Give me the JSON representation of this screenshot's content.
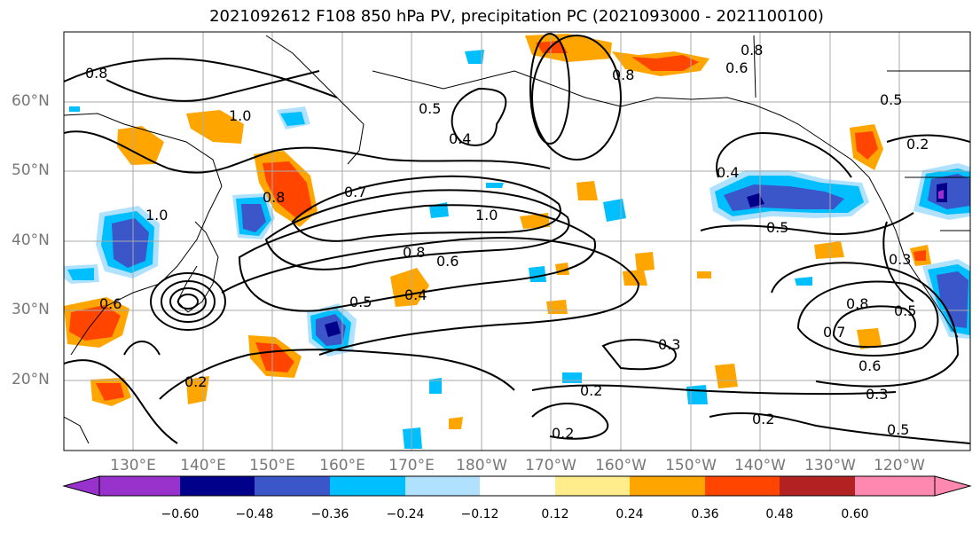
{
  "title": "2021092612 F108 850 hPa PV, precipitation PC (2021093000 - 2021100100)",
  "lat_labels": [
    "60°N",
    "50°N",
    "40°N",
    "30°N",
    "20°N"
  ],
  "lon_labels": [
    "130°E",
    "140°E",
    "150°E",
    "160°E",
    "170°E",
    "180°W",
    "170°W",
    "160°W",
    "150°W",
    "140°W",
    "130°W",
    "120°W"
  ],
  "colorbar": {
    "colors": [
      "#9932cc",
      "#00008b",
      "#3a56c9",
      "#00bfff",
      "#b0e2ff",
      "#ffffff",
      "#ffec8b",
      "#ffa500",
      "#ff4500",
      "#b22222",
      "#ff88b0"
    ],
    "tick_labels": [
      "−0.60",
      "−0.48",
      "−0.36",
      "−0.24",
      "−0.12",
      "0.12",
      "0.24",
      "0.36",
      "0.48",
      "0.60"
    ]
  },
  "contour_labels": [
    "0.8",
    "0.8",
    "0.6",
    "0.5",
    "0.4",
    "1.0",
    "0.7",
    "0.8",
    "1.0",
    "0.8",
    "0.6",
    "0.5",
    "0.4",
    "0.2",
    "0.5",
    "0.3",
    "0.2",
    "0.2",
    "0.4",
    "0.5",
    "0.3",
    "0.2",
    "0.5",
    "0.8",
    "0.7",
    "0.6",
    "0.3",
    "0.2",
    "0.8",
    "1.0",
    "0.6",
    "0.5"
  ]
}
